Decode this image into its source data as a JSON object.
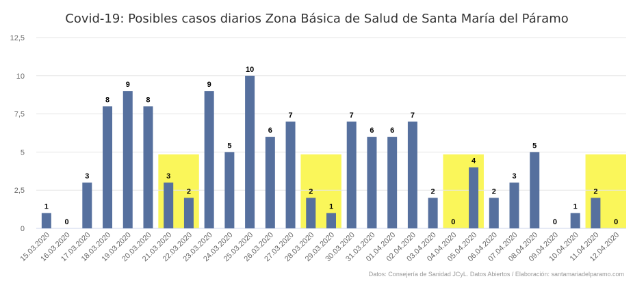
{
  "chart_data": {
    "type": "bar",
    "title": "Covid-19: Posibles casos diarios Zona Básica de Salud de Santa María del Páramo",
    "xlabel": "",
    "ylabel": "",
    "ylim": [
      0,
      12.5
    ],
    "ytick_labels": [
      "0",
      "2,5",
      "5",
      "7,5",
      "10",
      "12,5"
    ],
    "yticks": [
      0,
      2.5,
      5,
      7.5,
      10,
      12.5
    ],
    "grid": true,
    "categories": [
      "15.03.2020",
      "16.03.2020",
      "17.03.2020",
      "18.03.2020",
      "19.03.2020",
      "20.03.2020",
      "21.03.2020",
      "22.03.2020",
      "23.03.2020",
      "24.03.2020",
      "25.03.2020",
      "26.03.2020",
      "27.03.2020",
      "28.03.2020",
      "29.03.2020",
      "30.03.2020",
      "31.03.2020",
      "01.04.2020",
      "02.04.2020",
      "03.04.2020",
      "04.04.2020",
      "05.04.2020",
      "06.04.2020",
      "07.04.2020",
      "08.04.2020",
      "09.04.2020",
      "10.04.2020",
      "11.04.2020",
      "12.04.2020"
    ],
    "values": [
      1,
      0,
      3,
      8,
      9,
      8,
      3,
      2,
      9,
      5,
      10,
      6,
      7,
      2,
      1,
      7,
      6,
      6,
      7,
      2,
      0,
      4,
      2,
      3,
      5,
      0,
      1,
      2,
      0
    ],
    "highlighted_ranges": [
      {
        "from": "21.03.2020",
        "to": "22.03.2020"
      },
      {
        "from": "28.03.2020",
        "to": "29.03.2020"
      },
      {
        "from": "04.04.2020",
        "to": "05.04.2020"
      },
      {
        "from": "11.04.2020",
        "to": "12.04.2020"
      }
    ],
    "bar_color": "#56709e",
    "highlight_color": "#faf65a",
    "credits": "Datos: Consejería de Sanidad JCyL. Datos Abiertos / Elaboración: santamariadelparamo.com"
  }
}
